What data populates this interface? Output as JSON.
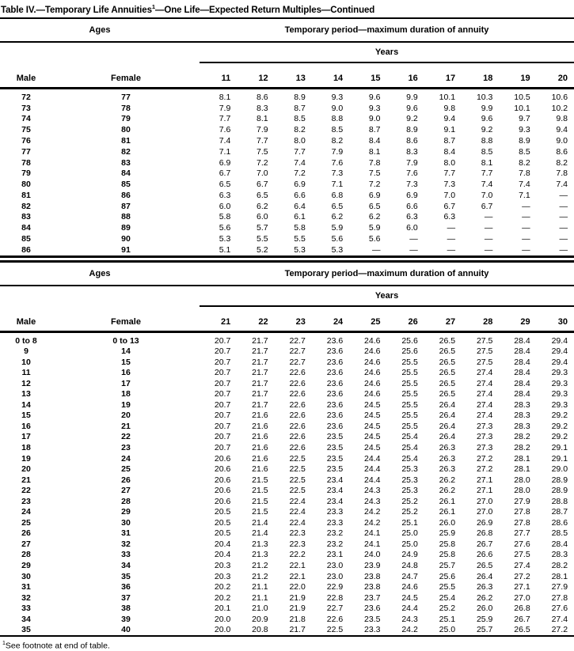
{
  "page": {
    "title_pre": "Table IV.—Temporary Life Annuities",
    "title_sup": "1",
    "title_post": "—One Life—Expected Return Multiples—Continued",
    "footnote_sup": "1",
    "footnote_text": "See footnote at end of table."
  },
  "tables": [
    {
      "ages_header": "Ages",
      "period_header": "Temporary period—maximum duration of annuity",
      "years_label": "Years",
      "male_header": "Male",
      "female_header": "Female",
      "year_columns": [
        "11",
        "12",
        "13",
        "14",
        "15",
        "16",
        "17",
        "18",
        "19",
        "20"
      ],
      "rows": [
        {
          "male": "72",
          "female": "77",
          "values": [
            "8.1",
            "8.6",
            "8.9",
            "9.3",
            "9.6",
            "9.9",
            "10.1",
            "10.3",
            "10.5",
            "10.6"
          ]
        },
        {
          "male": "73",
          "female": "78",
          "values": [
            "7.9",
            "8.3",
            "8.7",
            "9.0",
            "9.3",
            "9.6",
            "9.8",
            "9.9",
            "10.1",
            "10.2"
          ]
        },
        {
          "male": "74",
          "female": "79",
          "values": [
            "7.7",
            "8.1",
            "8.5",
            "8.8",
            "9.0",
            "9.2",
            "9.4",
            "9.6",
            "9.7",
            "9.8"
          ]
        },
        {
          "male": "75",
          "female": "80",
          "values": [
            "7.6",
            "7.9",
            "8.2",
            "8.5",
            "8.7",
            "8.9",
            "9.1",
            "9.2",
            "9.3",
            "9.4"
          ]
        },
        {
          "male": "76",
          "female": "81",
          "values": [
            "7.4",
            "7.7",
            "8.0",
            "8.2",
            "8.4",
            "8.6",
            "8.7",
            "8.8",
            "8.9",
            "9.0"
          ]
        },
        {
          "male": "77",
          "female": "82",
          "values": [
            "7.1",
            "7.5",
            "7.7",
            "7.9",
            "8.1",
            "8.3",
            "8.4",
            "8.5",
            "8.5",
            "8.6"
          ]
        },
        {
          "male": "78",
          "female": "83",
          "values": [
            "6.9",
            "7.2",
            "7.4",
            "7.6",
            "7.8",
            "7.9",
            "8.0",
            "8.1",
            "8.2",
            "8.2"
          ]
        },
        {
          "male": "79",
          "female": "84",
          "values": [
            "6.7",
            "7.0",
            "7.2",
            "7.3",
            "7.5",
            "7.6",
            "7.7",
            "7.7",
            "7.8",
            "7.8"
          ]
        },
        {
          "male": "80",
          "female": "85",
          "values": [
            "6.5",
            "6.7",
            "6.9",
            "7.1",
            "7.2",
            "7.3",
            "7.3",
            "7.4",
            "7.4",
            "7.4"
          ]
        },
        {
          "male": "81",
          "female": "86",
          "values": [
            "6.3",
            "6.5",
            "6.6",
            "6.8",
            "6.9",
            "6.9",
            "7.0",
            "7.0",
            "7.1",
            "—"
          ]
        },
        {
          "male": "82",
          "female": "87",
          "values": [
            "6.0",
            "6.2",
            "6.4",
            "6.5",
            "6.5",
            "6.6",
            "6.7",
            "6.7",
            "—",
            "—"
          ]
        },
        {
          "male": "83",
          "female": "88",
          "values": [
            "5.8",
            "6.0",
            "6.1",
            "6.2",
            "6.2",
            "6.3",
            "6.3",
            "—",
            "—",
            "—"
          ]
        },
        {
          "male": "84",
          "female": "89",
          "values": [
            "5.6",
            "5.7",
            "5.8",
            "5.9",
            "5.9",
            "6.0",
            "—",
            "—",
            "—",
            "—"
          ]
        },
        {
          "male": "85",
          "female": "90",
          "values": [
            "5.3",
            "5.5",
            "5.5",
            "5.6",
            "5.6",
            "—",
            "—",
            "—",
            "—",
            "—"
          ]
        },
        {
          "male": "86",
          "female": "91",
          "values": [
            "5.1",
            "5.2",
            "5.3",
            "5.3",
            "—",
            "—",
            "—",
            "—",
            "—",
            "—"
          ]
        }
      ]
    },
    {
      "ages_header": "Ages",
      "period_header": "Temporary period—maximum duration of annuity",
      "years_label": "Years",
      "male_header": "Male",
      "female_header": "Female",
      "year_columns": [
        "21",
        "22",
        "23",
        "24",
        "25",
        "26",
        "27",
        "28",
        "29",
        "30"
      ],
      "rows": [
        {
          "male": "0 to 8",
          "female": "0 to 13",
          "values": [
            "20.7",
            "21.7",
            "22.7",
            "23.6",
            "24.6",
            "25.6",
            "26.5",
            "27.5",
            "28.4",
            "29.4"
          ]
        },
        {
          "male": "9",
          "female": "14",
          "values": [
            "20.7",
            "21.7",
            "22.7",
            "23.6",
            "24.6",
            "25.6",
            "26.5",
            "27.5",
            "28.4",
            "29.4"
          ]
        },
        {
          "male": "10",
          "female": "15",
          "values": [
            "20.7",
            "21.7",
            "22.7",
            "23.6",
            "24.6",
            "25.5",
            "26.5",
            "27.5",
            "28.4",
            "29.4"
          ]
        },
        {
          "male": "11",
          "female": "16",
          "values": [
            "20.7",
            "21.7",
            "22.6",
            "23.6",
            "24.6",
            "25.5",
            "26.5",
            "27.4",
            "28.4",
            "29.3"
          ]
        },
        {
          "male": "12",
          "female": "17",
          "values": [
            "20.7",
            "21.7",
            "22.6",
            "23.6",
            "24.6",
            "25.5",
            "26.5",
            "27.4",
            "28.4",
            "29.3"
          ]
        },
        {
          "male": "13",
          "female": "18",
          "values": [
            "20.7",
            "21.7",
            "22.6",
            "23.6",
            "24.6",
            "25.5",
            "26.5",
            "27.4",
            "28.4",
            "29.3"
          ]
        },
        {
          "male": "14",
          "female": "19",
          "values": [
            "20.7",
            "21.7",
            "22.6",
            "23.6",
            "24.5",
            "25.5",
            "26.4",
            "27.4",
            "28.3",
            "29.3"
          ]
        },
        {
          "male": "15",
          "female": "20",
          "values": [
            "20.7",
            "21.6",
            "22.6",
            "23.6",
            "24.5",
            "25.5",
            "26.4",
            "27.4",
            "28.3",
            "29.2"
          ]
        },
        {
          "male": "16",
          "female": "21",
          "values": [
            "20.7",
            "21.6",
            "22.6",
            "23.6",
            "24.5",
            "25.5",
            "26.4",
            "27.3",
            "28.3",
            "29.2"
          ]
        },
        {
          "male": "17",
          "female": "22",
          "values": [
            "20.7",
            "21.6",
            "22.6",
            "23.5",
            "24.5",
            "25.4",
            "26.4",
            "27.3",
            "28.2",
            "29.2"
          ]
        },
        {
          "male": "18",
          "female": "23",
          "values": [
            "20.7",
            "21.6",
            "22.6",
            "23.5",
            "24.5",
            "25.4",
            "26.3",
            "27.3",
            "28.2",
            "29.1"
          ]
        },
        {
          "male": "19",
          "female": "24",
          "values": [
            "20.6",
            "21.6",
            "22.5",
            "23.5",
            "24.4",
            "25.4",
            "26.3",
            "27.2",
            "28.1",
            "29.1"
          ]
        },
        {
          "male": "20",
          "female": "25",
          "values": [
            "20.6",
            "21.6",
            "22.5",
            "23.5",
            "24.4",
            "25.3",
            "26.3",
            "27.2",
            "28.1",
            "29.0"
          ]
        },
        {
          "male": "21",
          "female": "26",
          "values": [
            "20.6",
            "21.5",
            "22.5",
            "23.4",
            "24.4",
            "25.3",
            "26.2",
            "27.1",
            "28.0",
            "28.9"
          ]
        },
        {
          "male": "22",
          "female": "27",
          "values": [
            "20.6",
            "21.5",
            "22.5",
            "23.4",
            "24.3",
            "25.3",
            "26.2",
            "27.1",
            "28.0",
            "28.9"
          ]
        },
        {
          "male": "23",
          "female": "28",
          "values": [
            "20.6",
            "21.5",
            "22.4",
            "23.4",
            "24.3",
            "25.2",
            "26.1",
            "27.0",
            "27.9",
            "28.8"
          ]
        },
        {
          "male": "24",
          "female": "29",
          "values": [
            "20.5",
            "21.5",
            "22.4",
            "23.3",
            "24.2",
            "25.2",
            "26.1",
            "27.0",
            "27.8",
            "28.7"
          ]
        },
        {
          "male": "25",
          "female": "30",
          "values": [
            "20.5",
            "21.4",
            "22.4",
            "23.3",
            "24.2",
            "25.1",
            "26.0",
            "26.9",
            "27.8",
            "28.6"
          ]
        },
        {
          "male": "26",
          "female": "31",
          "values": [
            "20.5",
            "21.4",
            "22.3",
            "23.2",
            "24.1",
            "25.0",
            "25.9",
            "26.8",
            "27.7",
            "28.5"
          ]
        },
        {
          "male": "27",
          "female": "32",
          "values": [
            "20.4",
            "21.3",
            "22.3",
            "23.2",
            "24.1",
            "25.0",
            "25.8",
            "26.7",
            "27.6",
            "28.4"
          ]
        },
        {
          "male": "28",
          "female": "33",
          "values": [
            "20.4",
            "21.3",
            "22.2",
            "23.1",
            "24.0",
            "24.9",
            "25.8",
            "26.6",
            "27.5",
            "28.3"
          ]
        },
        {
          "male": "29",
          "female": "34",
          "values": [
            "20.3",
            "21.2",
            "22.1",
            "23.0",
            "23.9",
            "24.8",
            "25.7",
            "26.5",
            "27.4",
            "28.2"
          ]
        },
        {
          "male": "30",
          "female": "35",
          "values": [
            "20.3",
            "21.2",
            "22.1",
            "23.0",
            "23.8",
            "24.7",
            "25.6",
            "26.4",
            "27.2",
            "28.1"
          ]
        },
        {
          "male": "31",
          "female": "36",
          "values": [
            "20.2",
            "21.1",
            "22.0",
            "22.9",
            "23.8",
            "24.6",
            "25.5",
            "26.3",
            "27.1",
            "27.9"
          ]
        },
        {
          "male": "32",
          "female": "37",
          "values": [
            "20.2",
            "21.1",
            "21.9",
            "22.8",
            "23.7",
            "24.5",
            "25.4",
            "26.2",
            "27.0",
            "27.8"
          ]
        },
        {
          "male": "33",
          "female": "38",
          "values": [
            "20.1",
            "21.0",
            "21.9",
            "22.7",
            "23.6",
            "24.4",
            "25.2",
            "26.0",
            "26.8",
            "27.6"
          ]
        },
        {
          "male": "34",
          "female": "39",
          "values": [
            "20.0",
            "20.9",
            "21.8",
            "22.6",
            "23.5",
            "24.3",
            "25.1",
            "25.9",
            "26.7",
            "27.4"
          ]
        },
        {
          "male": "35",
          "female": "40",
          "values": [
            "20.0",
            "20.8",
            "21.7",
            "22.5",
            "23.3",
            "24.2",
            "25.0",
            "25.7",
            "26.5",
            "27.2"
          ]
        }
      ]
    }
  ]
}
